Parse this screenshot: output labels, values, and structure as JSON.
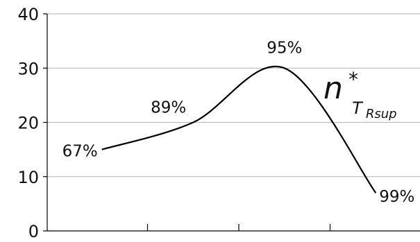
{
  "chart_data": {
    "type": "line",
    "x": [
      1,
      2,
      3,
      4
    ],
    "series": [
      {
        "values": [
          15,
          20,
          30,
          7
        ]
      }
    ],
    "data_labels": [
      "67%",
      "89%",
      "95%",
      "99%"
    ],
    "ylim": [
      0,
      40
    ],
    "yticks": [
      0,
      10,
      20,
      30,
      40
    ],
    "xlim": [
      0,
      4.6
    ],
    "grid": "horizontal",
    "legend": "none",
    "annotation": {
      "base": "n",
      "superscript": "*",
      "subscript": "T",
      "sub_subscript": "Rsup"
    },
    "colors": {
      "line": "#000000",
      "grid": "#b3b3b3",
      "axis": "#000000"
    }
  }
}
